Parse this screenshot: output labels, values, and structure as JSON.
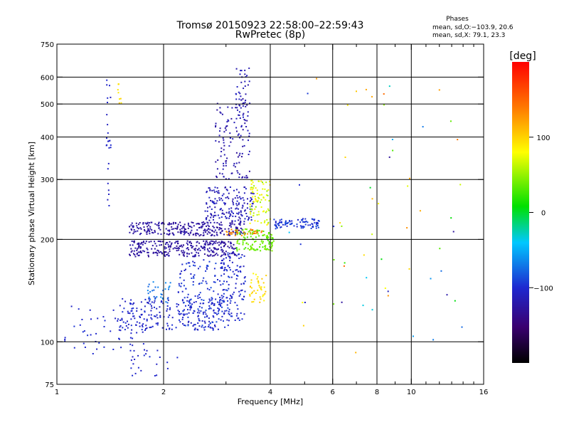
{
  "title": "Tromsø 20150923 22:58:00–22:59:43",
  "subtitle": "RwPretec (8p)",
  "phases_header": "Phases",
  "phases_line1": "mean, sd,O:−103.9, 20.6",
  "phases_line2": "mean, sd,X:  79.1, 23.3",
  "colorbar_unit": "[deg]",
  "colorbar_ticks": [
    {
      "label": "100",
      "value": 100
    },
    {
      "label": "0",
      "value": 0
    },
    {
      "label": "−100",
      "value": -100
    }
  ],
  "colorbar_range": [
    -200,
    200
  ],
  "chart_data": {
    "type": "scatter",
    "title": "Tromsø 20150923 22:58:00–22:59:43",
    "subtitle": "RwPretec (8p)",
    "xlabel": "Frequency [MHz]",
    "ylabel": "Stationary phase Virtual Height [km]",
    "x_scale": "log",
    "y_scale": "log",
    "xlim": [
      1,
      16
    ],
    "ylim": [
      75,
      750
    ],
    "grid": true,
    "x_ticks": [
      {
        "label": "1",
        "value": 1,
        "grid": false
      },
      {
        "label": "2",
        "value": 2,
        "grid": true
      },
      {
        "label": "4",
        "value": 4,
        "grid": true
      },
      {
        "label": "6",
        "value": 6,
        "grid": true
      },
      {
        "label": "8",
        "value": 8,
        "grid": true
      },
      {
        "label": "10",
        "value": 10,
        "grid": true
      },
      {
        "label": "16",
        "value": 16,
        "grid": false
      }
    ],
    "x_minor": [
      3,
      5,
      7,
      9,
      11,
      12,
      13,
      14,
      15
    ],
    "y_ticks": [
      {
        "label": "75",
        "value": 75,
        "grid": false
      },
      {
        "label": "100",
        "value": 100,
        "grid": true
      },
      {
        "label": "200",
        "value": 200,
        "grid": true
      },
      {
        "label": "300",
        "value": 300,
        "grid": true
      },
      {
        "label": "400",
        "value": 400,
        "grid": true
      },
      {
        "label": "500",
        "value": 500,
        "grid": true
      },
      {
        "label": "600",
        "value": 600,
        "grid": true
      },
      {
        "label": "750",
        "value": 750,
        "grid": false
      }
    ],
    "clusters": [
      {
        "name": "low-x-trace",
        "f": [
          1.05,
          1.8
        ],
        "h": [
          92,
          130
        ],
        "phase": [
          -110,
          -95
        ],
        "count": 55
      },
      {
        "name": "f1-lower-blue",
        "f": [
          1.5,
          2.9
        ],
        "h": [
          108,
          135
        ],
        "phase": [
          -115,
          -95
        ],
        "count": 220
      },
      {
        "name": "cyan-blob",
        "f": [
          1.8,
          2.1
        ],
        "h": [
          130,
          150
        ],
        "phase": [
          -80,
          -60
        ],
        "count": 30
      },
      {
        "name": "rising-blue-1",
        "f": [
          2.2,
          3.1
        ],
        "h": [
          110,
          175
        ],
        "phase": [
          -110,
          -85
        ],
        "count": 160
      },
      {
        "name": "rising-blue-2",
        "f": [
          2.9,
          3.4
        ],
        "h": [
          115,
          185
        ],
        "phase": [
          -115,
          -90
        ],
        "count": 110
      },
      {
        "name": "purple-band-lower",
        "f": [
          1.6,
          3.2
        ],
        "h": [
          178,
          198
        ],
        "phase": [
          -145,
          -125
        ],
        "count": 280
      },
      {
        "name": "purple-band-upper",
        "f": [
          1.6,
          3.4
        ],
        "h": [
          205,
          225
        ],
        "phase": [
          -145,
          -125
        ],
        "count": 260
      },
      {
        "name": "f-layer-cusp",
        "f": [
          2.6,
          3.6
        ],
        "h": [
          225,
          285
        ],
        "phase": [
          -130,
          -105
        ],
        "count": 170
      },
      {
        "name": "spread-f-upper",
        "f": [
          2.8,
          3.5
        ],
        "h": [
          300,
          520
        ],
        "phase": [
          -140,
          -115
        ],
        "count": 120
      },
      {
        "name": "high-column",
        "f": [
          3.2,
          3.5
        ],
        "h": [
          450,
          640
        ],
        "phase": [
          -130,
          -105
        ],
        "count": 40
      },
      {
        "name": "green-x-mode",
        "f": [
          3.2,
          4.1
        ],
        "h": [
          185,
          215
        ],
        "phase": [
          20,
          45
        ],
        "count": 120
      },
      {
        "name": "yellow-x-mode",
        "f": [
          3.5,
          4.0
        ],
        "h": [
          220,
          300
        ],
        "phase": [
          40,
          95
        ],
        "count": 80
      },
      {
        "name": "yellow-low",
        "f": [
          3.5,
          3.9
        ],
        "h": [
          130,
          160
        ],
        "phase": [
          80,
          110
        ],
        "count": 40
      },
      {
        "name": "orange-mid",
        "f": [
          3.0,
          3.8
        ],
        "h": [
          205,
          215
        ],
        "phase": [
          120,
          150
        ],
        "count": 30
      },
      {
        "name": "extension-right",
        "f": [
          4.1,
          5.5
        ],
        "h": [
          215,
          230
        ],
        "phase": [
          -105,
          -85
        ],
        "count": 90
      },
      {
        "name": "vertical-1.4mhz",
        "f": [
          1.38,
          1.42
        ],
        "h": [
          250,
          620
        ],
        "phase": [
          -115,
          -100
        ],
        "count": 25
      },
      {
        "name": "yellow-1.5mhz",
        "f": [
          1.48,
          1.52
        ],
        "h": [
          500,
          575
        ],
        "phase": [
          85,
          105
        ],
        "count": 8
      },
      {
        "name": "sparse-low-blue",
        "f": [
          1.6,
          2.2
        ],
        "h": [
          78,
          95
        ],
        "phase": [
          -110,
          -95
        ],
        "count": 25
      },
      {
        "name": "sparse-high",
        "f": [
          4.5,
          14
        ],
        "h": [
          90,
          620
        ],
        "phase": [
          -140,
          150
        ],
        "count": 60
      }
    ]
  }
}
